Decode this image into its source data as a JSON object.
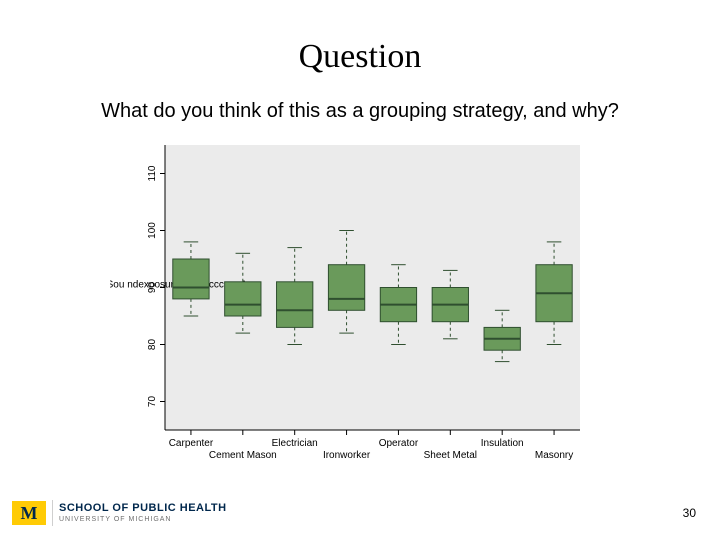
{
  "title": "Question",
  "subtitle": "What do you think of this as a grouping strategy, and why?",
  "page_number": "30",
  "footer": {
    "logo_letter": "M",
    "line1": "SCHOOL OF PUBLIC HEALTH",
    "line2": "UNIVERSITY OF MICHIGAN"
  },
  "boxplot": {
    "type": "boxplot",
    "background_color": "#ebebeb",
    "plot_fill": "#ebebeb",
    "box_fill": "#6a9a5b",
    "box_stroke": "#2f4f2f",
    "whisker_color": "#2f4f2f",
    "axis_color": "#000000",
    "tick_color": "#000000",
    "tick_label_color": "#000000",
    "tick_fontsize": 10,
    "xlabel_color": "#000000",
    "xlabel_fontsize": 10,
    "ylabel": "Peak sound exposure in dBA occupation",
    "ylabel_truncated": "F eakSou ndexposur N D fA.cccupeAon",
    "ylabel_fontsize": 10,
    "ylim": [
      65,
      115
    ],
    "yticks": [
      70,
      80,
      90,
      100,
      110
    ],
    "categories": [
      {
        "label": "Carpenter",
        "row": 1,
        "q1": 88,
        "median": 90,
        "q3": 95,
        "lw": 85,
        "uw": 98
      },
      {
        "label": "Cement Mason",
        "row": 2,
        "q1": 85,
        "median": 87,
        "q3": 91,
        "lw": 82,
        "uw": 96
      },
      {
        "label": "Electrician",
        "row": 1,
        "q1": 83,
        "median": 86,
        "q3": 91,
        "lw": 80,
        "uw": 97
      },
      {
        "label": "Ironworker",
        "row": 2,
        "q1": 86,
        "median": 88,
        "q3": 94,
        "lw": 82,
        "uw": 100
      },
      {
        "label": "Operator",
        "row": 1,
        "q1": 84,
        "median": 87,
        "q3": 90,
        "lw": 80,
        "uw": 94
      },
      {
        "label": "Sheet Metal",
        "row": 2,
        "q1": 84,
        "median": 87,
        "q3": 90,
        "lw": 81,
        "uw": 93
      },
      {
        "label": "Insulation",
        "row": 1,
        "q1": 79,
        "median": 81,
        "q3": 83,
        "lw": 77,
        "uw": 86
      },
      {
        "label": "Masonry",
        "row": 2,
        "q1": 84,
        "median": 89,
        "q3": 94,
        "lw": 80,
        "uw": 98
      }
    ],
    "box_relwidth": 0.7
  }
}
